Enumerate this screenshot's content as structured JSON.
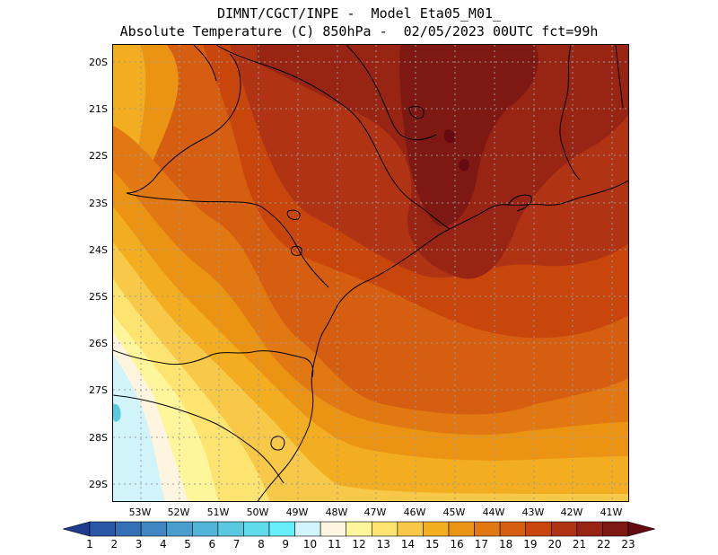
{
  "title_line1": "DIMNT/CGCT/INPE -  Model Eta05_M01_",
  "title_line2": "Absolute Temperature (C) 850hPa -  02/05/2023 00UTC fct=99h",
  "lat_labels": [
    "20S",
    "21S",
    "22S",
    "23S",
    "24S",
    "25S",
    "26S",
    "27S",
    "28S",
    "29S"
  ],
  "lon_labels": [
    "53W",
    "52W",
    "51W",
    "50W",
    "49W",
    "48W",
    "47W",
    "46W",
    "45W",
    "44W",
    "43W",
    "42W",
    "41W"
  ],
  "colorbar": {
    "labels": [
      "1",
      "2",
      "3",
      "4",
      "5",
      "6",
      "7",
      "8",
      "9",
      "10",
      "11",
      "12",
      "13",
      "14",
      "15",
      "16",
      "17",
      "18",
      "19",
      "20",
      "21",
      "22",
      "23"
    ],
    "colors": [
      "#1e3c8c",
      "#2a58a6",
      "#3670b4",
      "#3f86c2",
      "#4a9ece",
      "#52b4d8",
      "#5ac8e0",
      "#5fdaea",
      "#66eefa",
      "#d0f4fa",
      "#fdf5e0",
      "#fff59a",
      "#fde470",
      "#f8c848",
      "#f2ae20",
      "#eb9414",
      "#e27812",
      "#d65e10",
      "#c8460c",
      "#b03414",
      "#982414",
      "#7e1812",
      "#640a10"
    ]
  },
  "colors": {
    "frame": "#000000",
    "grid": "#9a9a9a",
    "coast": "#000000"
  }
}
